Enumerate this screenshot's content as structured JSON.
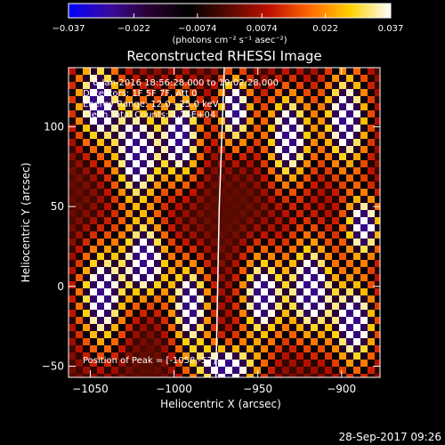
{
  "chart_data": {
    "type": "heatmap",
    "title": "Reconstructed RHESSI Image",
    "xlabel": "Heliocentric X (arcsec)",
    "ylabel": "Heliocentric Y (arcsec)",
    "xlim": [
      -1063,
      -877
    ],
    "ylim": [
      -57,
      137
    ],
    "xticks": [
      -1050,
      -1000,
      -950,
      -900
    ],
    "yticks": [
      -50,
      0,
      50,
      100
    ],
    "colorbar": {
      "ticks": [
        -0.037,
        -0.022,
        -0.0074,
        0.0074,
        0.022,
        0.037
      ],
      "tick_labels": [
        "−0.037",
        "−0.022",
        "−0.0074",
        "0.0074",
        "0.022",
        "0.037"
      ],
      "range": [
        -0.037,
        0.037
      ],
      "units_label": "(photons cm⁻² s⁻¹ asec⁻²)",
      "colormap": [
        "#0000ff",
        "#3a0aa0",
        "#2a0030",
        "#000000",
        "#5a0a00",
        "#c01000",
        "#ff6a00",
        "#ffd000",
        "#ffffff"
      ]
    },
    "annotations": [
      "6-Jan-2016 18:56:28.000 to 19:02:28.000",
      "Detectors: 1F 5F 7F, Att 0",
      "Energy Range: 12.0 - 25.0 keV",
      "Clean    Total Counts: 1.24E+04"
    ],
    "peak_text": "Position of Peak = [-1058,-57]",
    "peak": [
      -1058,
      -57
    ],
    "limb_points": [
      [
        -970,
        137
      ],
      [
        -973,
        50
      ],
      [
        -975,
        -57
      ]
    ]
  },
  "footer": {
    "timestamp": "28-Sep-2017 09:26"
  }
}
